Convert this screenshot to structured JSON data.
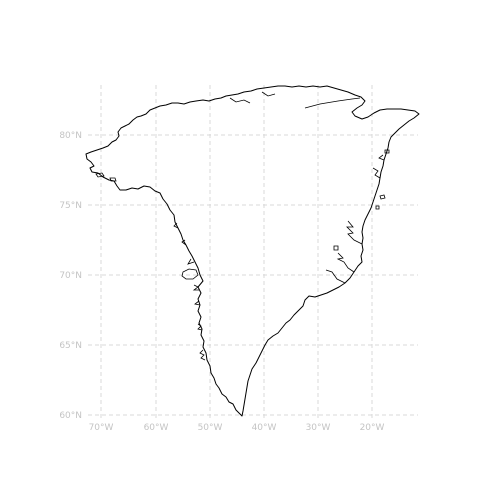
{
  "map": {
    "region": "Greenland",
    "projection": "lon-lat graticule",
    "grid": true,
    "colors": {
      "background": "#ffffff",
      "grid": "#d9d9d9",
      "tick_label": "#c4c4c4",
      "coastline": "#000000"
    },
    "y_axis": {
      "ticks": [
        {
          "value": 80,
          "label": "80°N"
        },
        {
          "value": 75,
          "label": "75°N"
        },
        {
          "value": 70,
          "label": "70°N"
        },
        {
          "value": 65,
          "label": "65°N"
        },
        {
          "value": 60,
          "label": "60°N"
        }
      ],
      "range": [
        60,
        84
      ]
    },
    "x_axis": {
      "ticks": [
        {
          "value": -70,
          "label": "70°W"
        },
        {
          "value": -60,
          "label": "60°W"
        },
        {
          "value": -50,
          "label": "50°W"
        },
        {
          "value": -40,
          "label": "40°W"
        },
        {
          "value": -30,
          "label": "30°W"
        },
        {
          "value": -20,
          "label": "20°W"
        }
      ],
      "range": [
        -73,
        -11
      ]
    }
  }
}
